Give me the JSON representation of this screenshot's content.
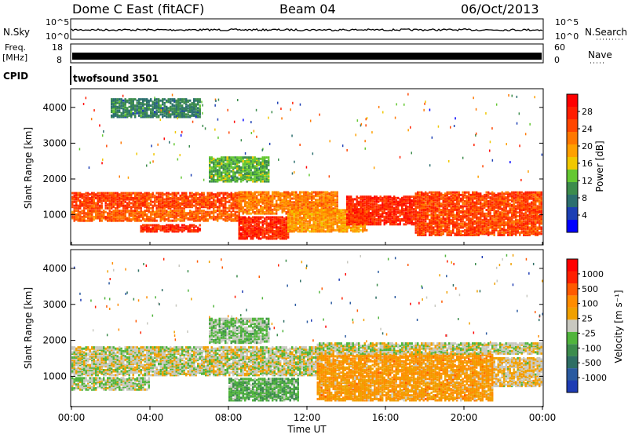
{
  "header": {
    "station": "Dome C East (fitACF)",
    "beam": "Beam 04",
    "date": "06/Oct/2013"
  },
  "status_panels": {
    "nsky": {
      "label": "N.Sky",
      "ticks": [
        "10^5",
        "10^0"
      ]
    },
    "nsearch": {
      "label": "N.Search",
      "ticks": [
        "10^5",
        "10^0"
      ]
    },
    "freq": {
      "label_line1": "Freq.",
      "label_line2": "[MHz]",
      "ticks": [
        "18",
        "8"
      ]
    },
    "nave": {
      "label": "Nave",
      "ticks": [
        "60",
        "0"
      ]
    },
    "cpid": {
      "label": "CPID",
      "value": "twofsound 3501"
    }
  },
  "colors": {
    "power": [
      "#0000ff",
      "#1c3fb4",
      "#2c6f6f",
      "#3c8c4c",
      "#64c832",
      "#f0c800",
      "#ffa000",
      "#ff7800",
      "#ff4600",
      "#ff1e00",
      "#ff0000"
    ],
    "velocity": [
      "#1e3cb4",
      "#2a5aa0",
      "#2e6e64",
      "#3c8c4c",
      "#50b43c",
      "#c8c8c0",
      "#f0a000",
      "#ff8c00",
      "#ff5a00",
      "#ff2000",
      "#ff0000"
    ]
  },
  "chart_data": [
    {
      "type": "heatmap",
      "name": "power",
      "xlabel": "",
      "ylabel": "Slant Range [km]",
      "x_range_hours": [
        0,
        24
      ],
      "y_range_km": [
        180,
        4500
      ],
      "y_ticks": [
        "1000",
        "2000",
        "3000",
        "4000"
      ],
      "colorbar": {
        "label": "Power [dB]",
        "ticks": [
          "28",
          "24",
          "20",
          "16",
          "12",
          "8",
          "4"
        ],
        "range": [
          0,
          32
        ]
      },
      "bands": [
        {
          "t0": 0.0,
          "t1": 8.5,
          "r0": 1150,
          "r1": 1600,
          "v": 26
        },
        {
          "t0": 0.0,
          "t1": 8.5,
          "r0": 800,
          "r1": 1100,
          "v": 24
        },
        {
          "t0": 3.5,
          "t1": 6.5,
          "r0": 500,
          "r1": 700,
          "v": 28
        },
        {
          "t0": 8.5,
          "t1": 11.0,
          "r0": 300,
          "r1": 900,
          "v": 28
        },
        {
          "t0": 8.5,
          "t1": 13.5,
          "r0": 1000,
          "r1": 1600,
          "v": 22
        },
        {
          "t0": 11.0,
          "t1": 15.0,
          "r0": 500,
          "r1": 1100,
          "v": 20
        },
        {
          "t0": 14.0,
          "t1": 17.5,
          "r0": 700,
          "r1": 1500,
          "v": 28
        },
        {
          "t0": 17.5,
          "t1": 24.0,
          "r0": 400,
          "r1": 1600,
          "v": 26
        },
        {
          "t0": 7.0,
          "t1": 10.0,
          "r0": 1900,
          "r1": 2600,
          "v": 12
        },
        {
          "t0": 2.0,
          "t1": 6.5,
          "r0": 3700,
          "r1": 4200,
          "v": 8
        }
      ]
    },
    {
      "type": "heatmap",
      "name": "velocity",
      "xlabel": "Time UT",
      "ylabel": "Slant Range [km]",
      "x_range_hours": [
        0,
        24
      ],
      "x_ticks": [
        "00:00",
        "04:00",
        "08:00",
        "12:00",
        "16:00",
        "20:00",
        "00:00"
      ],
      "y_range_km": [
        180,
        4500
      ],
      "y_ticks": [
        "1000",
        "2000",
        "3000",
        "4000"
      ],
      "colorbar": {
        "label": "Velocity [m s⁻¹]",
        "ticks": [
          "1000",
          "500",
          "100",
          "25",
          "-25",
          "-100",
          "-500",
          "-1000"
        ],
        "range": [
          -1200,
          1200
        ]
      },
      "bands": [
        {
          "t0": 0.0,
          "t1": 12.5,
          "r0": 1000,
          "r1": 1800,
          "v": 0
        },
        {
          "t0": 0.0,
          "t1": 4.0,
          "r0": 600,
          "r1": 950,
          "v": -80
        },
        {
          "t0": 8.0,
          "t1": 11.5,
          "r0": 300,
          "r1": 900,
          "v": -300
        },
        {
          "t0": 12.5,
          "t1": 21.5,
          "r0": 300,
          "r1": 1600,
          "v": 350
        },
        {
          "t0": 21.5,
          "t1": 24.0,
          "r0": 700,
          "r1": 1500,
          "v": 120
        },
        {
          "t0": 7.0,
          "t1": 10.0,
          "r0": 1900,
          "r1": 2600,
          "v": -150
        },
        {
          "t0": 12.5,
          "t1": 24.0,
          "r0": 1600,
          "r1": 1900,
          "v": 0
        }
      ]
    }
  ]
}
